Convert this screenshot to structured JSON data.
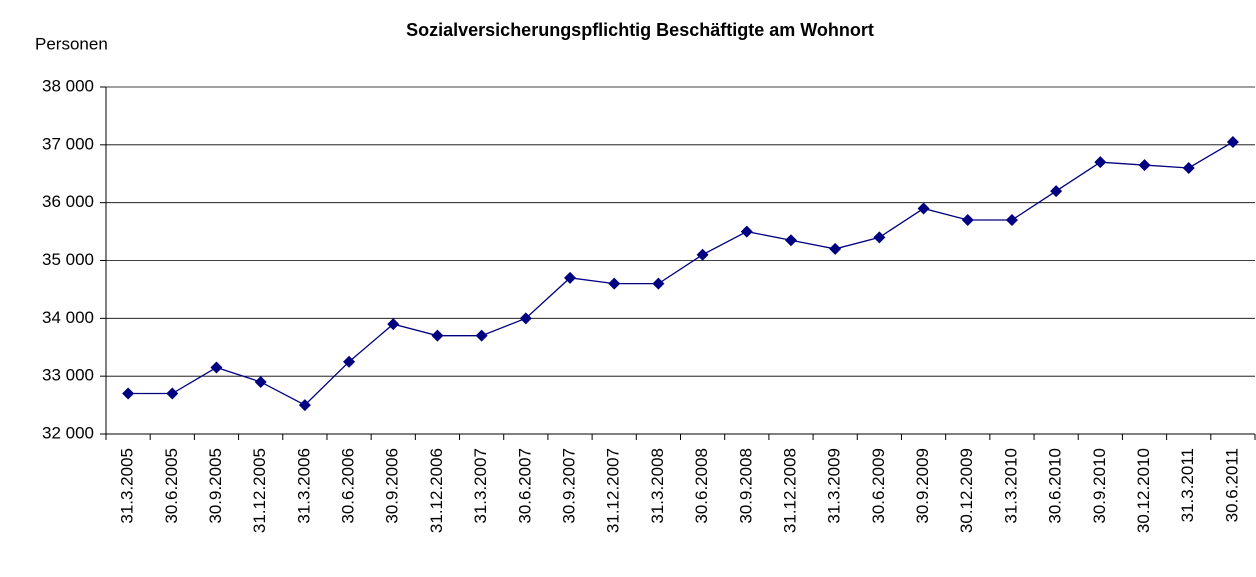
{
  "chart_data": {
    "type": "line",
    "title": "Sozialversicherungspflichtig Beschäftigte am Wohnort",
    "y_label": "Personen",
    "categories": [
      "31.3.2005",
      "30.6.2005",
      "30.9.2005",
      "31.12.2005",
      "31.3.2006",
      "30.6.2006",
      "30.9.2006",
      "31.12.2006",
      "31.3.2007",
      "30.6.2007",
      "30.9.2007",
      "31.12.2007",
      "31.3.2008",
      "30.6.2008",
      "30.9.2008",
      "31.12.2008",
      "31.3.2009",
      "30.6.2009",
      "30.9.2009",
      "30.12.2009",
      "31.3.2010",
      "30.6.2010",
      "30.9.2010",
      "30.12.2010",
      "31.3.2011",
      "30.6.2011"
    ],
    "series": [
      {
        "color": "#000080",
        "values": [
          32700,
          32700,
          33150,
          32900,
          32500,
          33250,
          33900,
          33700,
          33700,
          34000,
          34700,
          34600,
          34600,
          35100,
          35500,
          35350,
          35200,
          35400,
          35900,
          35700,
          35700,
          36200,
          36700,
          36650,
          36600,
          37050
        ]
      }
    ],
    "ylim": [
      32000,
      38000
    ],
    "yticks": [
      {
        "value": 32000,
        "label": "32 000"
      },
      {
        "value": 33000,
        "label": "33 000"
      },
      {
        "value": 34000,
        "label": "34 000"
      },
      {
        "value": 35000,
        "label": "35 000"
      },
      {
        "value": 36000,
        "label": "36 000"
      },
      {
        "value": 37000,
        "label": "37 000"
      },
      {
        "value": 38000,
        "label": "38 000"
      }
    ],
    "grid": true
  }
}
